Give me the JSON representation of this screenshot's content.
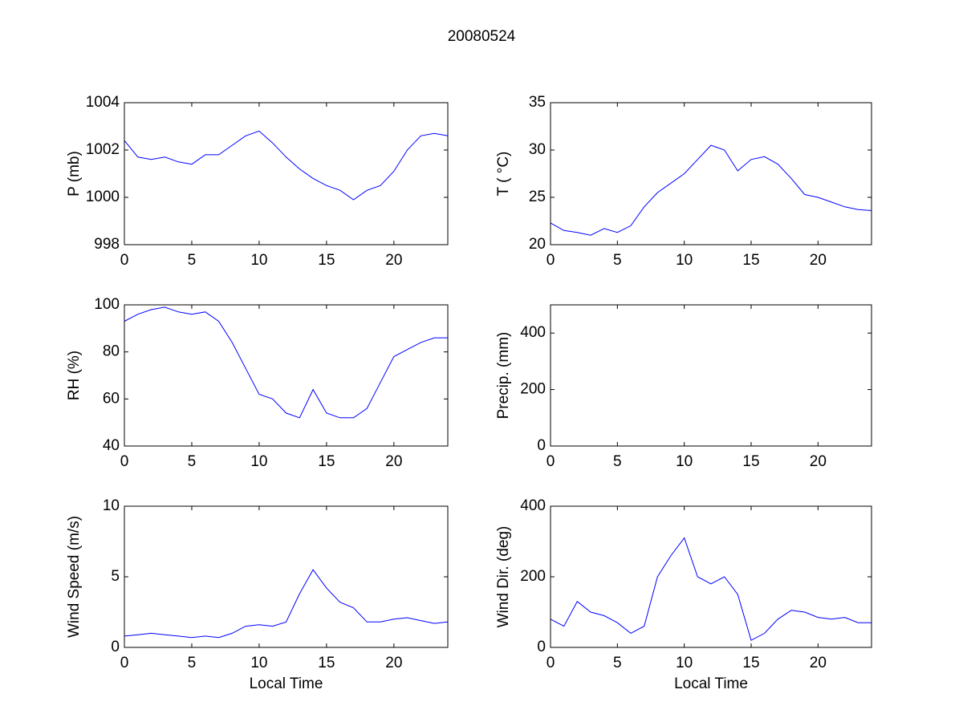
{
  "title": "20080524",
  "chart_data": [
    {
      "type": "line",
      "ylabel": "P (mb)",
      "xlim": [
        0,
        24
      ],
      "xticks": [
        0,
        5,
        10,
        15,
        20
      ],
      "ylim": [
        998,
        1004
      ],
      "yticks": [
        998,
        1000,
        1002,
        1004
      ],
      "x": [
        0,
        1,
        2,
        3,
        4,
        5,
        6,
        7,
        8,
        9,
        10,
        11,
        12,
        13,
        14,
        15,
        16,
        17,
        18,
        19,
        20,
        21,
        22,
        23,
        24
      ],
      "series": [
        {
          "color": "#0000ff",
          "values": [
            1002.4,
            1001.7,
            1001.6,
            1001.7,
            1001.5,
            1001.4,
            1001.8,
            1001.8,
            1002.2,
            1002.6,
            1002.8,
            1002.3,
            1001.7,
            1001.2,
            1000.8,
            1000.5,
            1000.3,
            999.9,
            1000.3,
            1000.5,
            1001.1,
            1002.0,
            1002.6,
            1002.7,
            1002.6
          ]
        }
      ]
    },
    {
      "type": "line",
      "ylabel": "T ( °C)",
      "xlim": [
        0,
        24
      ],
      "xticks": [
        0,
        5,
        10,
        15,
        20
      ],
      "ylim": [
        20,
        35
      ],
      "yticks": [
        20,
        25,
        30,
        35
      ],
      "x": [
        0,
        1,
        2,
        3,
        4,
        5,
        6,
        7,
        8,
        9,
        10,
        11,
        12,
        13,
        14,
        15,
        16,
        17,
        18,
        19,
        20,
        21,
        22,
        23,
        24
      ],
      "series": [
        {
          "color": "#0000ff",
          "values": [
            22.3,
            21.5,
            21.3,
            21.0,
            21.7,
            21.3,
            22.0,
            24.0,
            25.5,
            26.5,
            27.5,
            29.0,
            30.5,
            30.0,
            27.8,
            29.0,
            29.3,
            28.5,
            27.0,
            25.3,
            25.0,
            24.5,
            24.0,
            23.7,
            23.6
          ]
        }
      ]
    },
    {
      "type": "line",
      "ylabel": "RH (%)",
      "xlim": [
        0,
        24
      ],
      "xticks": [
        0,
        5,
        10,
        15,
        20
      ],
      "ylim": [
        40,
        100
      ],
      "yticks": [
        40,
        60,
        80,
        100
      ],
      "x": [
        0,
        1,
        2,
        3,
        4,
        5,
        6,
        7,
        8,
        9,
        10,
        11,
        12,
        13,
        14,
        15,
        16,
        17,
        18,
        19,
        20,
        21,
        22,
        23,
        24
      ],
      "series": [
        {
          "color": "#0000ff",
          "values": [
            93,
            96,
            98,
            99,
            97,
            96,
            97,
            93,
            84,
            73,
            62,
            60,
            54,
            52,
            64,
            54,
            52,
            52,
            56,
            67,
            78,
            81,
            84,
            86,
            86
          ]
        }
      ]
    },
    {
      "type": "line",
      "ylabel": "Precip. (mm)",
      "xlim": [
        0,
        24
      ],
      "xticks": [
        0,
        5,
        10,
        15,
        20
      ],
      "ylim": [
        0,
        500
      ],
      "yticks": [
        0,
        200,
        400
      ],
      "x": [
        0,
        1,
        2,
        3,
        4,
        5,
        6,
        7,
        8,
        9,
        10,
        11,
        12,
        13,
        14,
        15,
        16,
        17,
        18,
        19,
        20,
        21,
        22,
        23,
        24
      ],
      "series": [
        {
          "color": "#0000ff",
          "values": [
            0,
            0,
            0,
            0,
            0,
            0,
            0,
            0,
            0,
            0,
            0,
            0,
            0,
            0,
            0,
            0,
            0,
            0,
            0,
            0,
            0,
            0,
            0,
            0,
            0
          ]
        }
      ]
    },
    {
      "type": "line",
      "ylabel": "Wind Speed (m/s)",
      "xlabel": "Local Time",
      "xlim": [
        0,
        24
      ],
      "xticks": [
        0,
        5,
        10,
        15,
        20
      ],
      "ylim": [
        0,
        10
      ],
      "yticks": [
        0,
        5,
        10
      ],
      "x": [
        0,
        1,
        2,
        3,
        4,
        5,
        6,
        7,
        8,
        9,
        10,
        11,
        12,
        13,
        14,
        15,
        16,
        17,
        18,
        19,
        20,
        21,
        22,
        23,
        24
      ],
      "series": [
        {
          "color": "#0000ff",
          "values": [
            0.8,
            0.9,
            1.0,
            0.9,
            0.8,
            0.7,
            0.8,
            0.7,
            1.0,
            1.5,
            1.6,
            1.5,
            1.8,
            3.8,
            5.5,
            4.2,
            3.2,
            2.8,
            1.8,
            1.8,
            2.0,
            2.1,
            1.9,
            1.7,
            1.8
          ]
        }
      ]
    },
    {
      "type": "line",
      "ylabel": "Wind Dir. (deg)",
      "xlabel": "Local Time",
      "xlim": [
        0,
        24
      ],
      "xticks": [
        0,
        5,
        10,
        15,
        20
      ],
      "ylim": [
        0,
        400
      ],
      "yticks": [
        0,
        200,
        400
      ],
      "x": [
        0,
        1,
        2,
        3,
        4,
        5,
        6,
        7,
        8,
        9,
        10,
        11,
        12,
        13,
        14,
        15,
        16,
        17,
        18,
        19,
        20,
        21,
        22,
        23,
        24
      ],
      "series": [
        {
          "color": "#0000ff",
          "values": [
            80,
            60,
            130,
            100,
            90,
            70,
            40,
            60,
            200,
            260,
            310,
            200,
            180,
            200,
            150,
            20,
            40,
            80,
            105,
            100,
            85,
            80,
            85,
            70,
            70
          ]
        }
      ]
    }
  ]
}
